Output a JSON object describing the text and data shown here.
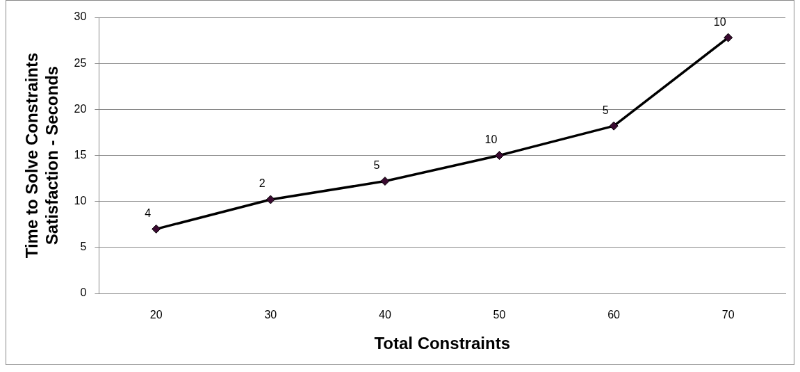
{
  "chart_data": {
    "type": "line",
    "xlabel": "Total Constraints",
    "ylabel": "Time to Solve Constraints\nSatisfaction - Seconds",
    "categories": [
      "20",
      "30",
      "40",
      "50",
      "60",
      "70"
    ],
    "series": [
      {
        "color": "#000000",
        "values": [
          7,
          10.2,
          12.2,
          15,
          18.2,
          27.8
        ]
      }
    ],
    "ylim": [
      0,
      30
    ],
    "yticks": [
      0,
      5,
      10,
      15,
      20,
      25,
      30
    ],
    "grid": "y",
    "legend": false,
    "marker": "diamond",
    "line_style": "solid",
    "annotations": [
      {
        "text": "4",
        "x": "20",
        "y": 7
      },
      {
        "text": "2",
        "x": "30",
        "y": 10.2
      },
      {
        "text": "5",
        "x": "40",
        "y": 12.2
      },
      {
        "text": "10",
        "x": "50",
        "y": 15
      },
      {
        "text": "5",
        "x": "60",
        "y": 18.2
      },
      {
        "text": "10",
        "x": "70",
        "y": 27.8
      }
    ]
  }
}
